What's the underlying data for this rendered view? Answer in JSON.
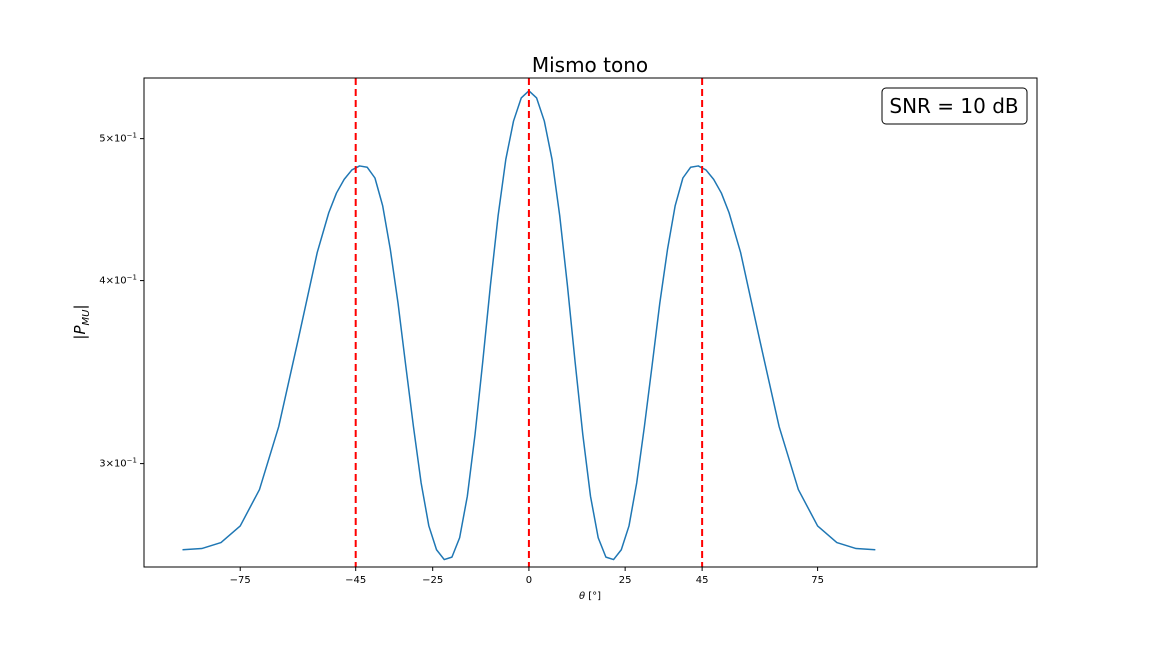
{
  "chart_data": {
    "type": "line",
    "title": "Mismo tono",
    "xlabel": "θ [°]",
    "ylabel": "|P_MU|",
    "yscale": "log",
    "xlim": [
      -100,
      132
    ],
    "ylim": [
      0.255,
      0.55
    ],
    "xticks": [
      -75,
      -45,
      -25,
      0,
      25,
      45,
      75
    ],
    "yticks": [
      {
        "value": 0.3,
        "label_base": "3",
        "label_times": "×",
        "label_pow_base": "10",
        "label_exp": "−1"
      },
      {
        "value": 0.4,
        "label_base": "4",
        "label_times": "×",
        "label_pow_base": "10",
        "label_exp": "−1"
      },
      {
        "value": 0.5,
        "label_base": "5",
        "label_times": "×",
        "label_pow_base": "10",
        "label_exp": "−1"
      }
    ],
    "grid": false,
    "vlines": [
      {
        "x": -45,
        "color": "#ff0000",
        "style": "dashed"
      },
      {
        "x": 0,
        "color": "#ff0000",
        "style": "dashed"
      },
      {
        "x": 45,
        "color": "#ff0000",
        "style": "dashed"
      }
    ],
    "annotation": {
      "text": "SNR = 10 dB",
      "placement": "top-right"
    },
    "series": [
      {
        "color": "#1f77b4",
        "x": [
          -90,
          -85,
          -80,
          -75,
          -70,
          -65,
          -60,
          -55,
          -52,
          -50,
          -48,
          -46,
          -44,
          -42,
          -40,
          -38,
          -36,
          -34,
          -32,
          -30,
          -28,
          -26,
          -24,
          -22,
          -20,
          -18,
          -16,
          -14,
          -12,
          -10,
          -8,
          -6,
          -4,
          -2,
          0,
          2,
          4,
          6,
          8,
          10,
          12,
          14,
          16,
          18,
          20,
          22,
          24,
          26,
          28,
          30,
          32,
          34,
          36,
          38,
          40,
          42,
          44,
          46,
          48,
          50,
          52,
          55,
          60,
          65,
          70,
          75,
          80,
          85,
          90
        ],
        "y": [
          0.262,
          0.2625,
          0.265,
          0.272,
          0.288,
          0.318,
          0.364,
          0.418,
          0.445,
          0.459,
          0.469,
          0.476,
          0.479,
          0.478,
          0.47,
          0.45,
          0.42,
          0.386,
          0.35,
          0.318,
          0.291,
          0.272,
          0.262,
          0.258,
          0.259,
          0.267,
          0.285,
          0.314,
          0.352,
          0.397,
          0.443,
          0.484,
          0.514,
          0.533,
          0.539,
          0.533,
          0.514,
          0.484,
          0.443,
          0.397,
          0.352,
          0.314,
          0.285,
          0.267,
          0.259,
          0.258,
          0.262,
          0.272,
          0.291,
          0.318,
          0.35,
          0.386,
          0.42,
          0.45,
          0.47,
          0.478,
          0.479,
          0.476,
          0.469,
          0.459,
          0.445,
          0.418,
          0.364,
          0.318,
          0.288,
          0.272,
          0.265,
          0.2625,
          0.262
        ]
      }
    ]
  }
}
